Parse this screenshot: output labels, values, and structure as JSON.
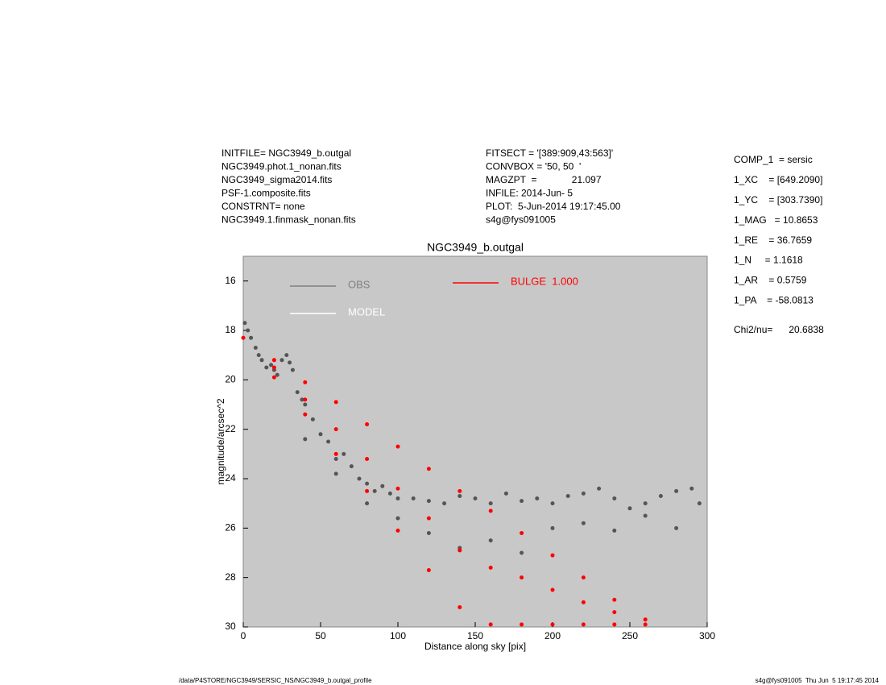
{
  "header": {
    "left": [
      "INITFILE= NGC3949_b.outgal",
      "NGC3949.phot.1_nonan.fits",
      "NGC3949_sigma2014.fits",
      "PSF-1.composite.fits",
      "CONSTRNT= none",
      "NGC3949.1.finmask_nonan.fits"
    ],
    "middle": [
      "FITSECT = '[389:909,43:563]'",
      "CONVBOX = '50, 50  '",
      "MAGZPT  =             21.097",
      "INFILE: 2014-Jun- 5",
      "PLOT:  5-Jun-2014 19:17:45.00",
      "s4g@fys091005"
    ],
    "right": [
      "COMP_1  = sersic",
      "1_XC    = [649.2090]",
      "1_YC    = [303.7390]",
      "1_MAG   = 10.8653",
      "1_RE    = 36.7659",
      "1_N     = 1.1618",
      "1_AR    = 0.5759",
      "1_PA    = -58.0813",
      "Chi2/nu=      20.6838"
    ]
  },
  "footer": {
    "left": "/data/P4STORE/NGC3949/SERSIC_NS/NGC3949_b.outgal_profile",
    "right": "s4g@fys091005  Thu Jun  5 19:17:45 2014"
  },
  "chart_data": {
    "type": "scatter",
    "title": "NGC3949_b.outgal",
    "x_label": "Distance along sky [pix]",
    "y_label": "magnitude/arcsec^2",
    "xlim": [
      0,
      300
    ],
    "ylim": [
      30,
      15
    ],
    "y_reversed": true,
    "xticks": [
      0,
      50,
      100,
      150,
      200,
      250,
      300
    ],
    "yticks": [
      16,
      18,
      20,
      22,
      24,
      26,
      28,
      30
    ],
    "background": "#c8c8c8",
    "series": [
      {
        "name": "OBS",
        "color": "#555555",
        "legend_color": "#808080",
        "x": [
          1,
          3,
          5,
          8,
          10,
          12,
          15,
          18,
          20,
          22,
          25,
          28,
          30,
          32,
          35,
          38,
          40,
          45,
          50,
          55,
          60,
          65,
          70,
          75,
          80,
          85,
          90,
          95,
          100,
          110,
          120,
          130,
          140,
          150,
          160,
          170,
          180,
          190,
          200,
          210,
          220,
          230,
          240,
          250,
          260,
          270,
          280,
          290,
          295,
          40,
          60,
          80,
          100,
          120,
          140,
          160,
          180,
          200,
          220,
          240,
          260,
          280
        ],
        "values": [
          17.7,
          18.0,
          18.3,
          18.7,
          19.0,
          19.2,
          19.5,
          19.4,
          19.6,
          19.8,
          19.2,
          19.0,
          19.3,
          19.6,
          20.5,
          20.8,
          21.0,
          21.6,
          22.2,
          22.5,
          23.2,
          23.0,
          23.5,
          24.0,
          24.2,
          24.5,
          24.3,
          24.6,
          24.8,
          24.8,
          24.9,
          25.0,
          24.7,
          24.8,
          25.0,
          24.6,
          24.9,
          24.8,
          25.0,
          24.7,
          24.6,
          24.4,
          24.8,
          25.2,
          25.0,
          24.7,
          24.5,
          24.4,
          25.0,
          22.4,
          23.8,
          25.0,
          25.6,
          26.2,
          26.8,
          26.5,
          27.0,
          26.0,
          25.8,
          26.1,
          25.5,
          26.0
        ]
      },
      {
        "name": "MODEL",
        "color": "#ffffff",
        "legend_color": "#ffffff",
        "x": [],
        "values": []
      },
      {
        "name": "BULGE  1.000",
        "color": "#ff0000",
        "legend_color": "#ff0000",
        "x": [
          0,
          20,
          20,
          20,
          40,
          40,
          40,
          60,
          60,
          60,
          80,
          80,
          80,
          100,
          100,
          100,
          120,
          120,
          120,
          140,
          140,
          140,
          160,
          160,
          160,
          180,
          180,
          180,
          200,
          200,
          200,
          220,
          220,
          220,
          240,
          240,
          240,
          260,
          260
        ],
        "values": [
          18.3,
          19.2,
          19.5,
          19.9,
          20.1,
          20.8,
          21.4,
          20.9,
          22.0,
          23.0,
          21.8,
          23.2,
          24.5,
          22.7,
          24.4,
          26.1,
          23.6,
          25.6,
          27.7,
          24.5,
          26.9,
          29.2,
          25.3,
          27.6,
          29.9,
          26.2,
          28.0,
          29.9,
          27.1,
          28.5,
          29.9,
          28.0,
          29.0,
          29.9,
          28.9,
          29.4,
          29.9,
          29.7,
          29.9
        ]
      }
    ]
  }
}
